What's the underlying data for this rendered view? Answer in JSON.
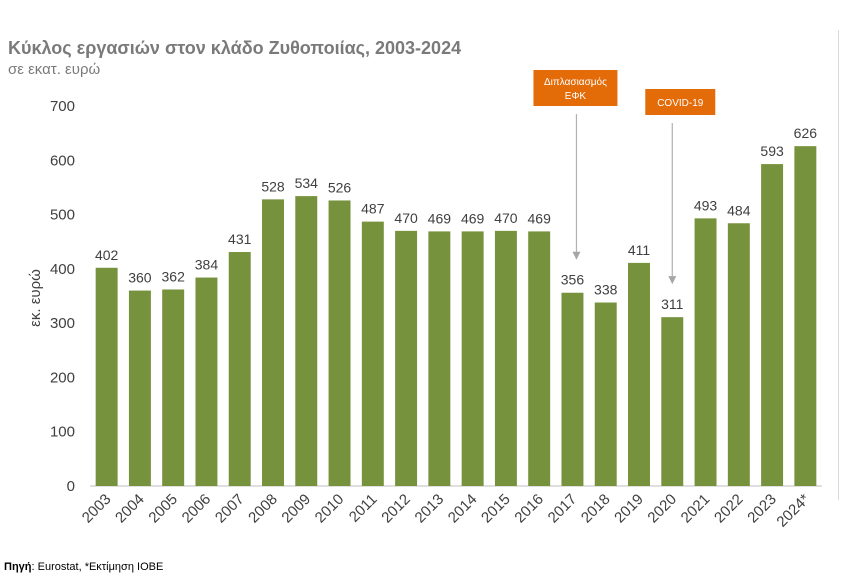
{
  "header": {
    "title": "Κύκλος εργασιών στον κλάδο Ζυθοποιίας, 2003-2024",
    "subtitle": "σε εκατ. ευρώ"
  },
  "footer": {
    "source_label": "Πηγή",
    "source_text": ": Eurostat, *Εκτίμηση ΙΟΒΕ"
  },
  "chart_data": {
    "type": "bar",
    "title": "Κύκλος εργασιών στον κλάδο Ζυθοποιίας, 2003-2024",
    "subtitle": "σε εκατ. ευρώ",
    "xlabel": "",
    "ylabel": "εκ. ευρώ",
    "ylim": [
      0,
      700
    ],
    "yticks": [
      0,
      100,
      200,
      300,
      400,
      500,
      600,
      700
    ],
    "grid": false,
    "legend": "none",
    "bar_color": "#76923c",
    "categories": [
      "2003",
      "2004",
      "2005",
      "2006",
      "2007",
      "2008",
      "2009",
      "2010",
      "2011",
      "2012",
      "2013",
      "2014",
      "2015",
      "2016",
      "2017",
      "2018",
      "2019",
      "2020",
      "2021",
      "2022",
      "2023",
      "2024*"
    ],
    "values": [
      402,
      360,
      362,
      384,
      431,
      528,
      534,
      526,
      487,
      470,
      469,
      469,
      470,
      469,
      356,
      338,
      411,
      311,
      493,
      484,
      593,
      626
    ],
    "annotations": [
      {
        "lines": [
          "Διπλασιασμός",
          "ΕΦΚ"
        ],
        "category": "2017",
        "color": "#e36c09"
      },
      {
        "lines": [
          "COVID-19"
        ],
        "category": "2020",
        "color": "#e36c09"
      }
    ]
  }
}
